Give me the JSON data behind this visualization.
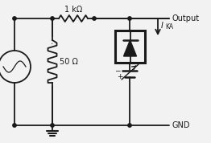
{
  "bg_color": "#f2f2f2",
  "line_color": "#1a1a1a",
  "text_color": "#1a1a1a",
  "figsize": [
    2.62,
    1.78
  ],
  "dpi": 100,
  "labels": {
    "resistor1": "1 kΩ",
    "resistor2": "50 Ω",
    "output": "Output",
    "gnd": "GND",
    "ika": "I",
    "ika_sub": "KA"
  }
}
